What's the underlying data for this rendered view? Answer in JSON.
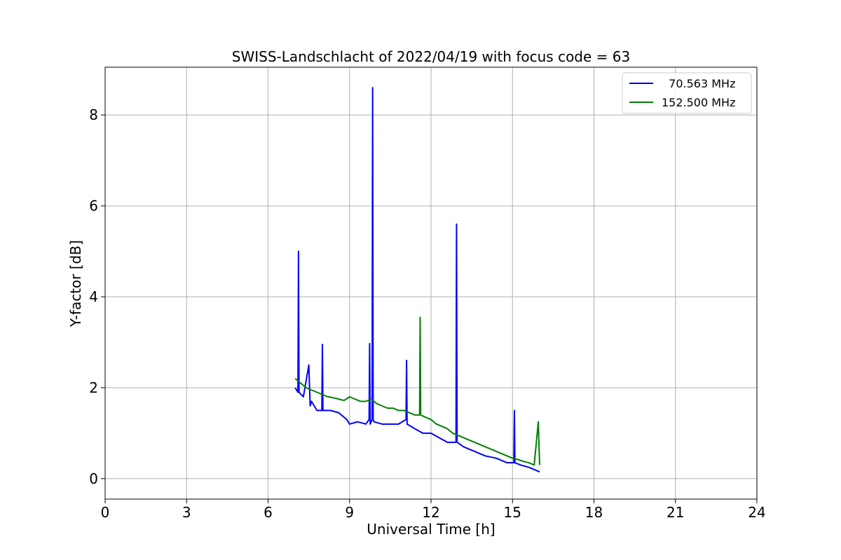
{
  "chart_data": {
    "type": "line",
    "title": "SWISS-Landschlacht of 2022/04/19 with focus code = 63",
    "xlabel": "Universal Time [h]",
    "ylabel": "Y-factor [dB]",
    "xlim": [
      0,
      24
    ],
    "ylim": [
      -0.45,
      9.05
    ],
    "xticks": [
      0,
      3,
      6,
      9,
      12,
      15,
      18,
      21,
      24
    ],
    "yticks": [
      0,
      2,
      4,
      6,
      8
    ],
    "grid": true,
    "legend_position": "top-right",
    "series": [
      {
        "name": "  70.563 MHz",
        "color": "#0000ff",
        "x": [
          7.0,
          7.1,
          7.12,
          7.14,
          7.3,
          7.5,
          7.55,
          7.6,
          7.8,
          7.98,
          8.0,
          8.02,
          8.3,
          8.6,
          8.9,
          9.0,
          9.3,
          9.6,
          9.72,
          9.74,
          9.76,
          9.83,
          9.85,
          9.87,
          9.9,
          10.2,
          10.5,
          10.8,
          11.08,
          11.1,
          11.12,
          11.4,
          11.7,
          12.0,
          12.3,
          12.6,
          12.92,
          12.94,
          12.96,
          13.2,
          13.6,
          14.0,
          14.4,
          14.8,
          15.05,
          15.07,
          15.09,
          15.3,
          15.6,
          15.8,
          16.0
        ],
        "y": [
          2.0,
          1.9,
          5.0,
          1.9,
          1.8,
          2.5,
          1.6,
          1.7,
          1.5,
          1.5,
          2.95,
          1.5,
          1.5,
          1.45,
          1.3,
          1.2,
          1.25,
          1.2,
          1.3,
          2.97,
          1.2,
          1.3,
          8.6,
          1.3,
          1.25,
          1.2,
          1.2,
          1.2,
          1.3,
          2.6,
          1.2,
          1.1,
          1.0,
          1.0,
          0.9,
          0.8,
          0.8,
          5.6,
          0.8,
          0.7,
          0.6,
          0.5,
          0.45,
          0.35,
          0.35,
          1.5,
          0.35,
          0.3,
          0.25,
          0.2,
          0.15
        ]
      },
      {
        "name": "152.500 MHz",
        "color": "#008000",
        "x": [
          7.0,
          7.2,
          7.4,
          7.6,
          7.8,
          8.0,
          8.2,
          8.4,
          8.6,
          8.8,
          9.0,
          9.2,
          9.4,
          9.6,
          9.8,
          10.0,
          10.2,
          10.4,
          10.6,
          10.8,
          11.0,
          11.2,
          11.4,
          11.58,
          11.6,
          11.62,
          11.8,
          12.0,
          12.2,
          12.4,
          12.6,
          12.8,
          13.0,
          13.2,
          13.4,
          13.6,
          13.8,
          14.0,
          14.2,
          14.4,
          14.6,
          14.8,
          15.0,
          15.2,
          15.4,
          15.6,
          15.8,
          15.95,
          16.0
        ],
        "y": [
          2.2,
          2.1,
          2.0,
          1.95,
          1.9,
          1.85,
          1.8,
          1.78,
          1.75,
          1.72,
          1.8,
          1.75,
          1.7,
          1.7,
          1.75,
          1.65,
          1.6,
          1.55,
          1.55,
          1.5,
          1.5,
          1.45,
          1.4,
          1.4,
          3.55,
          1.4,
          1.35,
          1.3,
          1.2,
          1.15,
          1.1,
          1.0,
          0.95,
          0.9,
          0.85,
          0.8,
          0.75,
          0.7,
          0.65,
          0.6,
          0.55,
          0.5,
          0.45,
          0.42,
          0.38,
          0.35,
          0.3,
          1.25,
          0.3
        ]
      }
    ]
  }
}
